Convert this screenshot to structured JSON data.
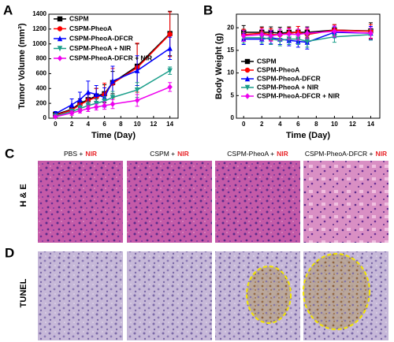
{
  "chart_data": [
    {
      "type": "line",
      "panel": "A",
      "xlabel": "Time (Day)",
      "ylabel": "Tumor Volume (mm³)",
      "x": [
        0,
        2,
        3,
        4,
        5,
        6,
        7,
        10,
        14
      ],
      "xlim": [
        -0.8,
        15
      ],
      "xticks": [
        0,
        2,
        4,
        6,
        8,
        10,
        12,
        14
      ],
      "ylim": [
        0,
        1400
      ],
      "yticks": [
        0,
        200,
        400,
        600,
        800,
        1000,
        1200,
        1400
      ],
      "legend": "upper-left",
      "series": [
        {
          "name": "CSPM",
          "color": "#000000",
          "marker": "square",
          "values": [
            50,
            120,
            200,
            250,
            300,
            330,
            480,
            700,
            1140
          ],
          "errors": [
            20,
            40,
            60,
            80,
            100,
            120,
            150,
            300,
            300
          ]
        },
        {
          "name": "CSPM-PheoA",
          "color": "#ff0000",
          "marker": "circle",
          "values": [
            40,
            110,
            180,
            240,
            280,
            320,
            470,
            680,
            1130
          ],
          "errors": [
            20,
            50,
            60,
            80,
            120,
            150,
            200,
            330,
            300
          ]
        },
        {
          "name": "CSPM-PheoA-DFCR",
          "color": "#0000ff",
          "marker": "triangle",
          "values": [
            60,
            180,
            250,
            350,
            320,
            280,
            500,
            640,
            940
          ],
          "errors": [
            30,
            80,
            100,
            150,
            120,
            130,
            200,
            200,
            150
          ]
        },
        {
          "name": "CSPM-PheoA + NIR",
          "color": "#1a9e8a",
          "marker": "triangle-down",
          "values": [
            30,
            90,
            130,
            170,
            200,
            230,
            280,
            380,
            640
          ],
          "errors": [
            15,
            30,
            40,
            50,
            60,
            60,
            80,
            100,
            50
          ]
        },
        {
          "name": "CSPM-PheoA-DFCR + NIR",
          "color": "#ee00ee",
          "marker": "diamond",
          "values": [
            20,
            70,
            100,
            130,
            150,
            170,
            190,
            240,
            420
          ],
          "errors": [
            10,
            30,
            30,
            40,
            40,
            50,
            60,
            80,
            60
          ]
        }
      ]
    },
    {
      "type": "line",
      "panel": "B",
      "xlabel": "Time (Day)",
      "ylabel": "Body Weight (g)",
      "x": [
        0,
        2,
        3,
        4,
        5,
        6,
        7,
        10,
        14
      ],
      "xlim": [
        -0.8,
        15
      ],
      "xticks": [
        0,
        2,
        4,
        6,
        8,
        10,
        12,
        14
      ],
      "ylim": [
        0,
        23
      ],
      "yticks": [
        0,
        5,
        10,
        15,
        20
      ],
      "legend": "lower-left",
      "series": [
        {
          "name": "CSPM",
          "color": "#000000",
          "marker": "square",
          "values": [
            19,
            19,
            19,
            18.8,
            19,
            19,
            19,
            19.5,
            19.3
          ],
          "errors": [
            1.5,
            1.2,
            1.2,
            1.3,
            1.2,
            1.3,
            1.2,
            1.2,
            1.8
          ]
        },
        {
          "name": "CSPM-PheoA",
          "color": "#ff0000",
          "marker": "circle",
          "values": [
            18.5,
            18.8,
            18.5,
            18.5,
            18.8,
            19,
            18.5,
            19.5,
            19.2
          ],
          "errors": [
            1.2,
            1.2,
            1.3,
            1.2,
            1.2,
            1.3,
            1.2,
            1.2,
            1.5
          ]
        },
        {
          "name": "CSPM-PheoA-DFCR",
          "color": "#0000ff",
          "marker": "triangle",
          "values": [
            17.5,
            17.5,
            17.8,
            17.5,
            17.2,
            17,
            16.8,
            19,
            18.8
          ],
          "errors": [
            1.2,
            1.2,
            1.3,
            1.2,
            1.2,
            1.3,
            1.5,
            1.2,
            1.5
          ]
        },
        {
          "name": "CSPM-PheoA + NIR",
          "color": "#1a9e8a",
          "marker": "triangle-down",
          "values": [
            17.8,
            17.8,
            17.5,
            17.2,
            17.5,
            17.5,
            17,
            18,
            18.5
          ],
          "errors": [
            1.2,
            1.2,
            1.2,
            1.2,
            1.2,
            1.2,
            1.3,
            1.2,
            1.2
          ]
        },
        {
          "name": "CSPM-PheoA-DFCR + NIR",
          "color": "#ee00ee",
          "marker": "diamond",
          "values": [
            18.2,
            18.5,
            18.2,
            18.5,
            18.6,
            18.5,
            18.8,
            19.2,
            18.8
          ],
          "errors": [
            1.2,
            1.2,
            1.2,
            1.2,
            1.2,
            1.2,
            1.2,
            1.2,
            1.2
          ]
        }
      ]
    }
  ],
  "histology": {
    "panels": [
      "C",
      "D"
    ],
    "rows": [
      "H & E",
      "TUNEL"
    ],
    "columns": [
      {
        "name": "PBS +",
        "laser": "NIR"
      },
      {
        "name": "CSPM +",
        "laser": "NIR"
      },
      {
        "name": "CSPM-PheoA +",
        "laser": "NIR"
      },
      {
        "name": "CSPM-PheoA-DFCR +",
        "laser": "NIR"
      }
    ]
  }
}
